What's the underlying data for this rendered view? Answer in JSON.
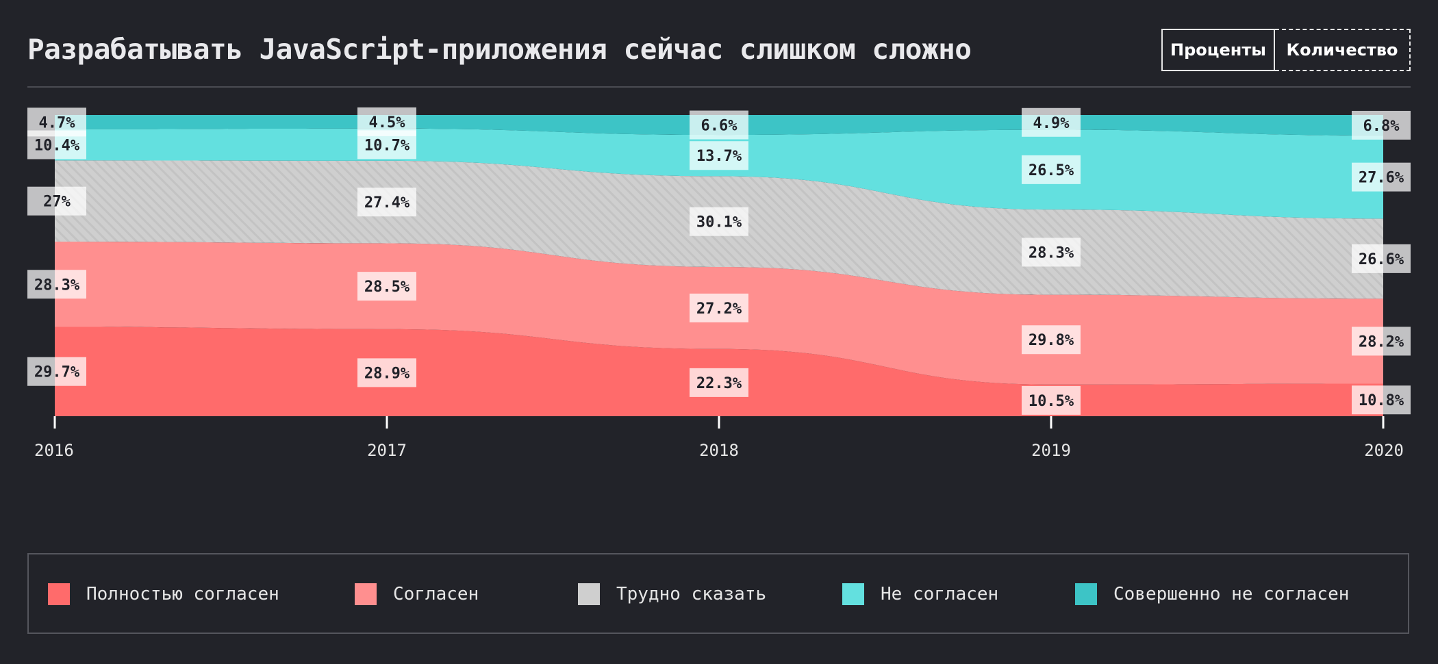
{
  "header": {
    "title": "Разрабатывать JavaScript-приложения сейчас слишком сложно",
    "toggle": {
      "percent_label": "Проценты",
      "count_label": "Количество"
    }
  },
  "chart_data": {
    "type": "area",
    "stacked": true,
    "normalized": true,
    "x": [
      "2016",
      "2017",
      "2018",
      "2019",
      "2020"
    ],
    "series": [
      {
        "name": "Полностью согласен",
        "color": "#ff6b6b",
        "values": [
          29.7,
          28.9,
          22.3,
          10.5,
          10.8
        ]
      },
      {
        "name": "Согласен",
        "color": "#ff8f8f",
        "values": [
          28.3,
          28.5,
          27.2,
          29.8,
          28.2
        ]
      },
      {
        "name": "Трудно сказать",
        "color": "#cfcfcf",
        "pattern": "diagonal-stripes",
        "values": [
          27,
          27.4,
          30.1,
          28.3,
          26.6
        ]
      },
      {
        "name": "Не согласен",
        "color": "#63e0df",
        "values": [
          10.4,
          10.7,
          13.7,
          26.5,
          27.6
        ]
      },
      {
        "name": "Совершенно не согласен",
        "color": "#3dc4c6",
        "values": [
          4.7,
          4.5,
          6.6,
          4.9,
          6.8
        ]
      }
    ],
    "labels": [
      [
        "29.7%",
        "28.9%",
        "22.3%",
        "10.5%",
        "10.8%"
      ],
      [
        "28.3%",
        "28.5%",
        "27.2%",
        "29.8%",
        "28.2%"
      ],
      [
        "27%",
        "27.4%",
        "30.1%",
        "28.3%",
        "26.6%"
      ],
      [
        "10.4%",
        "10.7%",
        "13.7%",
        "26.5%",
        "27.6%"
      ],
      [
        "4.7%",
        "4.5%",
        "6.6%",
        "4.9%",
        "6.8%"
      ]
    ],
    "ylim": [
      0,
      100
    ],
    "grid": false,
    "legend_position": "bottom"
  }
}
